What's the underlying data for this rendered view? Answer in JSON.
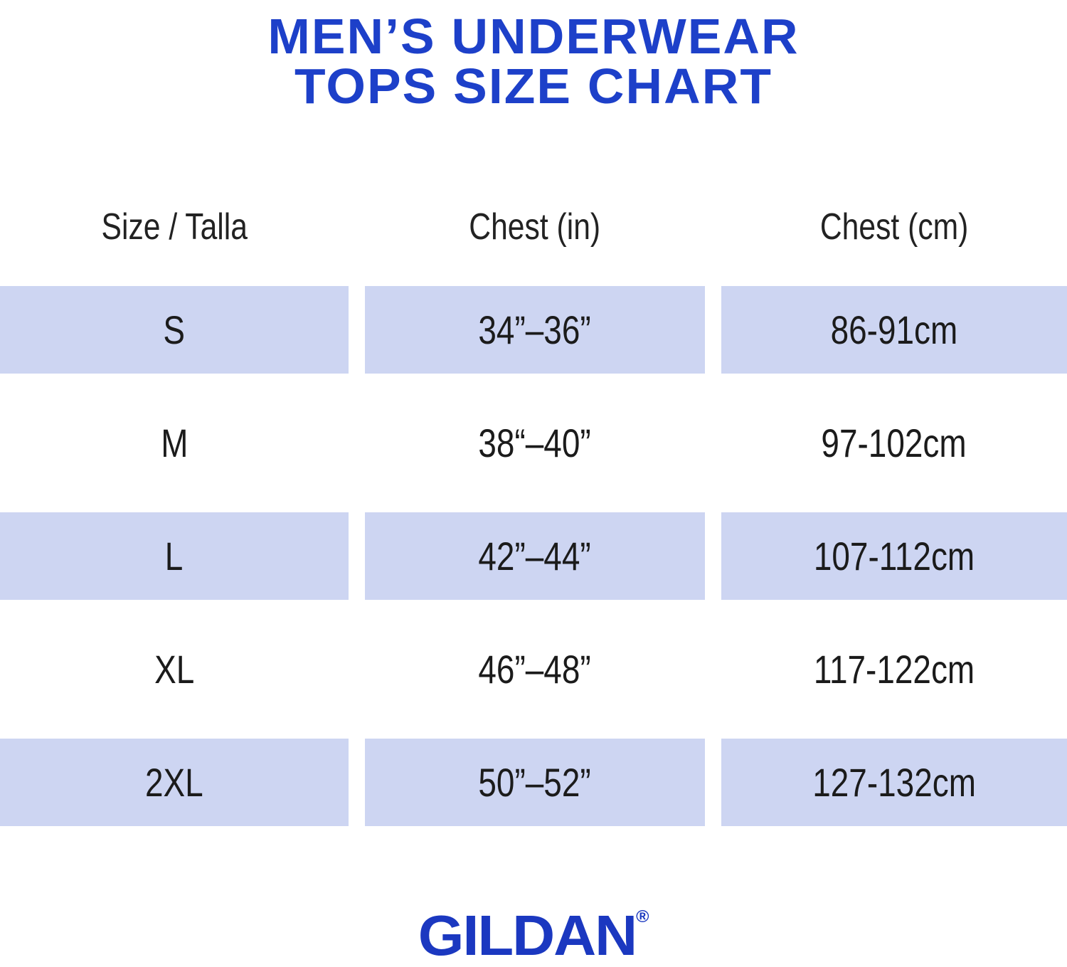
{
  "title": {
    "line1": "MEN’S UNDERWEAR",
    "line2": "TOPS SIZE CHART"
  },
  "chart_data": {
    "type": "table",
    "title": "MEN’S UNDERWEAR TOPS SIZE CHART",
    "columns": [
      "Size / Talla",
      "Chest (in)",
      "Chest (cm)"
    ],
    "rows": [
      [
        "S",
        "34”–36”",
        "86-91cm"
      ],
      [
        "M",
        "38“–40”",
        "97-102cm"
      ],
      [
        "L",
        "42”–44”",
        "107-112cm"
      ],
      [
        "XL",
        "46”–48”",
        "117-122cm"
      ],
      [
        "2XL",
        "50”–52”",
        "127-132cm"
      ]
    ],
    "shaded_rows": [
      0,
      2,
      4
    ]
  },
  "footer": {
    "logo_text": "GILDAN",
    "registered_mark": "®"
  },
  "colors": {
    "title_blue": "#1d40c9",
    "logo_blue": "#1b38c0",
    "row_shade": "#cdd5f2",
    "table_text": "#1b1b1b"
  }
}
